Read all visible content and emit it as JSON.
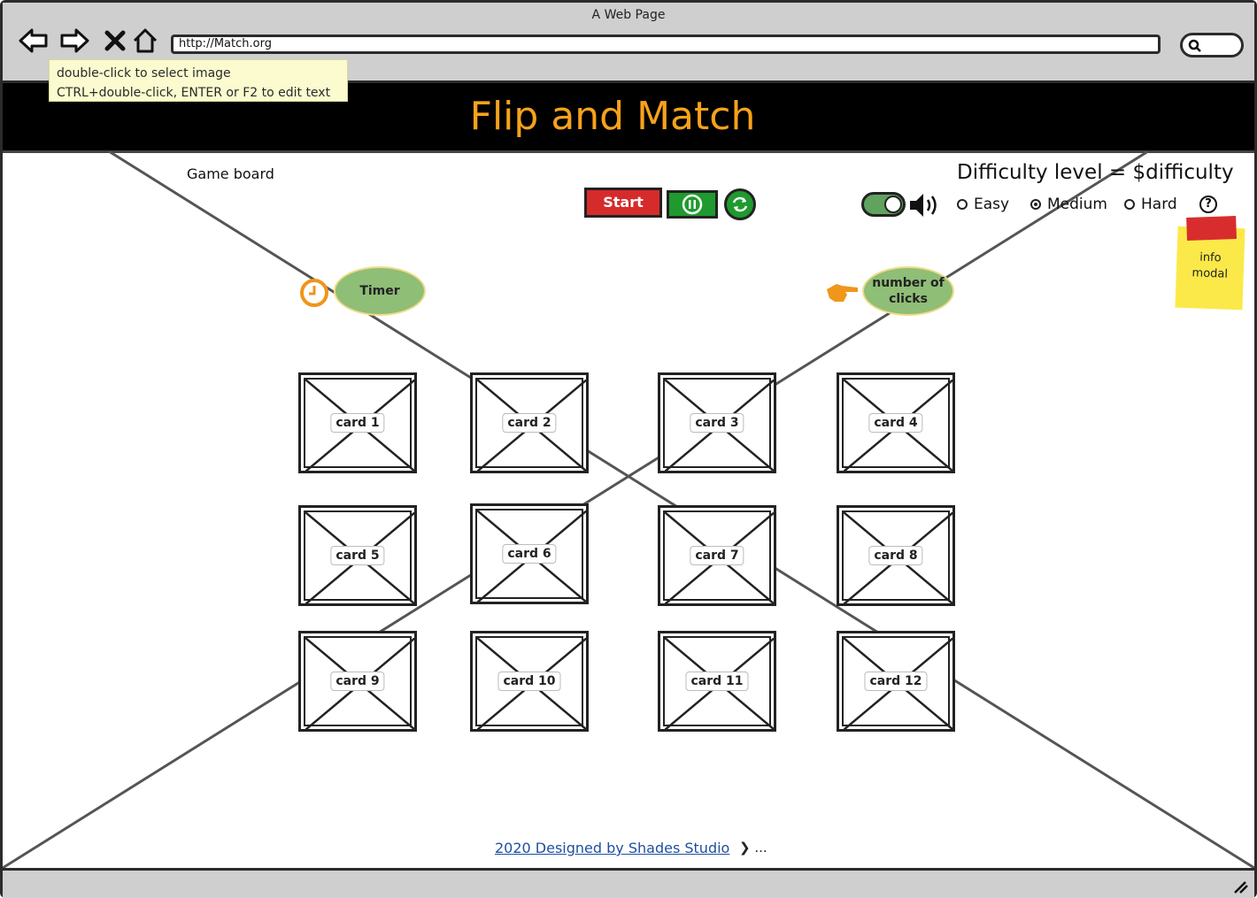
{
  "window": {
    "title": "A Web Page"
  },
  "browser": {
    "url": "http://Match.org"
  },
  "tooltip": {
    "line1": "double-click to select image",
    "line2": "CTRL+double-click, ENTER or F2 to edit text"
  },
  "header": {
    "title": "Flip and Match"
  },
  "board": {
    "label": "Game board"
  },
  "difficulty": {
    "label": "Difficulty level = $difficulty",
    "options": [
      "Easy",
      "Medium",
      "Hard"
    ],
    "selected": "Medium"
  },
  "controls": {
    "start_label": "Start",
    "sound_on": true
  },
  "stats": {
    "timer_label": "Timer",
    "clicks_label_line1": "number of",
    "clicks_label_line2": "clicks"
  },
  "info_note": {
    "line1": "info",
    "line2": "modal"
  },
  "cards": [
    "card 1",
    "card 2",
    "card 3",
    "card 4",
    "card 5",
    "card 6",
    "card 7",
    "card 8",
    "card 9",
    "card 10",
    "card 11",
    "card 12"
  ],
  "footer": {
    "link": "2020 Designed by Shades Studio",
    "more": "❯ ..."
  },
  "colors": {
    "title_orange": "#f7a21b",
    "start_red": "#d62b2b",
    "action_green": "#1f9a2f",
    "pill_green": "#8fbe77",
    "sticky_yellow": "#fbe94a",
    "link_blue": "#1f4fa0"
  }
}
